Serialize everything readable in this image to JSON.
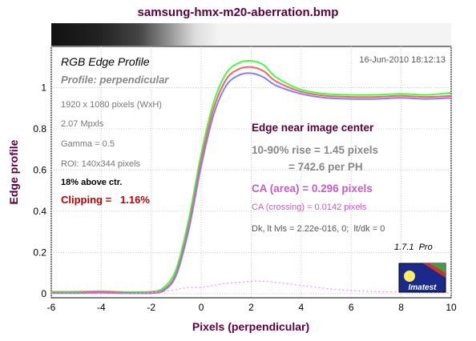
{
  "title": "samsung-hmx-m20-aberration.bmp",
  "panel": {
    "heading": "RGB Edge Profile",
    "subheading": "Profile: perpendicular",
    "date": "16-Jun-2010 18:12:13",
    "info": [
      "1920 x 1080 pixels (WxH)",
      "2.07 Mpxls",
      "Gamma = 0.5",
      "ROI: 140x344 pixels"
    ],
    "location": "18% above ctr.",
    "clipping": "Clipping =   1.16%",
    "edge_heading": "Edge near image center",
    "rise": "10-90% rise = 1.45 pixels",
    "per_ph": "= 742.6 per PH",
    "ca_area": "CA (area) = 0.296 pixels",
    "ca_crossing": "CA (crossing) = 0.0142 pixels",
    "dk": "Dk, lt lvls = 2.22e-016, 0;  lt/dk = 0",
    "version": "1.7.1  Pro",
    "logo_text": "Imatest"
  },
  "colors": {
    "title": "#5b0040",
    "axis_label": "#5b0040",
    "clipping": "#c00000",
    "edge_heading": "#5b0040",
    "ca": "#c55cc5",
    "grey_text": "#888888",
    "red_series": "#ff6060",
    "green_series": "#40ff40",
    "blue_series": "#8080ff",
    "ca_series": "#ff88ff"
  },
  "chart_data": {
    "type": "line",
    "title": "samsung-hmx-m20-aberration.bmp",
    "xlabel": "Pixels (perpendicular)",
    "ylabel": "Edge profile",
    "xlim": [
      -6,
      10
    ],
    "ylim": [
      -0.02,
      1.2
    ],
    "xticks": [
      -6,
      -4,
      -2,
      0,
      2,
      4,
      6,
      8,
      10
    ],
    "yticks": [
      0,
      0.2,
      0.4,
      0.6,
      0.8,
      1
    ],
    "ytick_labels": [
      "0",
      "0.2",
      "0.4",
      "0.6",
      "0.8",
      "1"
    ],
    "grid": true,
    "x": [
      -6,
      -5,
      -4,
      -3,
      -2,
      -1.5,
      -1,
      -0.5,
      0,
      0.5,
      1,
      1.5,
      2,
      2.5,
      3,
      4,
      5,
      6,
      7,
      8,
      9,
      10
    ],
    "series": [
      {
        "color": "#40ff40",
        "values": [
          0.01,
          0.01,
          0.012,
          0.008,
          0.01,
          0.03,
          0.12,
          0.36,
          0.68,
          0.93,
          1.07,
          1.12,
          1.13,
          1.11,
          1.05,
          0.99,
          0.97,
          0.965,
          0.965,
          0.97,
          0.965,
          0.975
        ]
      },
      {
        "color": "#ff6060",
        "values": [
          0.005,
          0.005,
          0.008,
          0.005,
          0.006,
          0.02,
          0.1,
          0.33,
          0.65,
          0.9,
          1.04,
          1.09,
          1.1,
          1.08,
          1.03,
          0.98,
          0.96,
          0.955,
          0.955,
          0.96,
          0.955,
          0.96
        ]
      },
      {
        "color": "#8080ff",
        "values": [
          0.003,
          0.003,
          0.005,
          0.002,
          0.003,
          0.015,
          0.09,
          0.31,
          0.62,
          0.87,
          1.01,
          1.06,
          1.07,
          1.05,
          1.01,
          0.97,
          0.95,
          0.945,
          0.945,
          0.95,
          0.945,
          0.95
        ]
      },
      {
        "color": "#ff88ff",
        "dashed": true,
        "values": [
          0.0,
          0.0,
          0.0,
          0.0,
          0.005,
          0.01,
          0.02,
          0.03,
          0.03,
          0.04,
          0.05,
          0.055,
          0.06,
          0.06,
          0.055,
          0.04,
          0.025,
          0.015,
          0.01,
          0.008,
          0.005,
          0.005
        ]
      }
    ]
  }
}
